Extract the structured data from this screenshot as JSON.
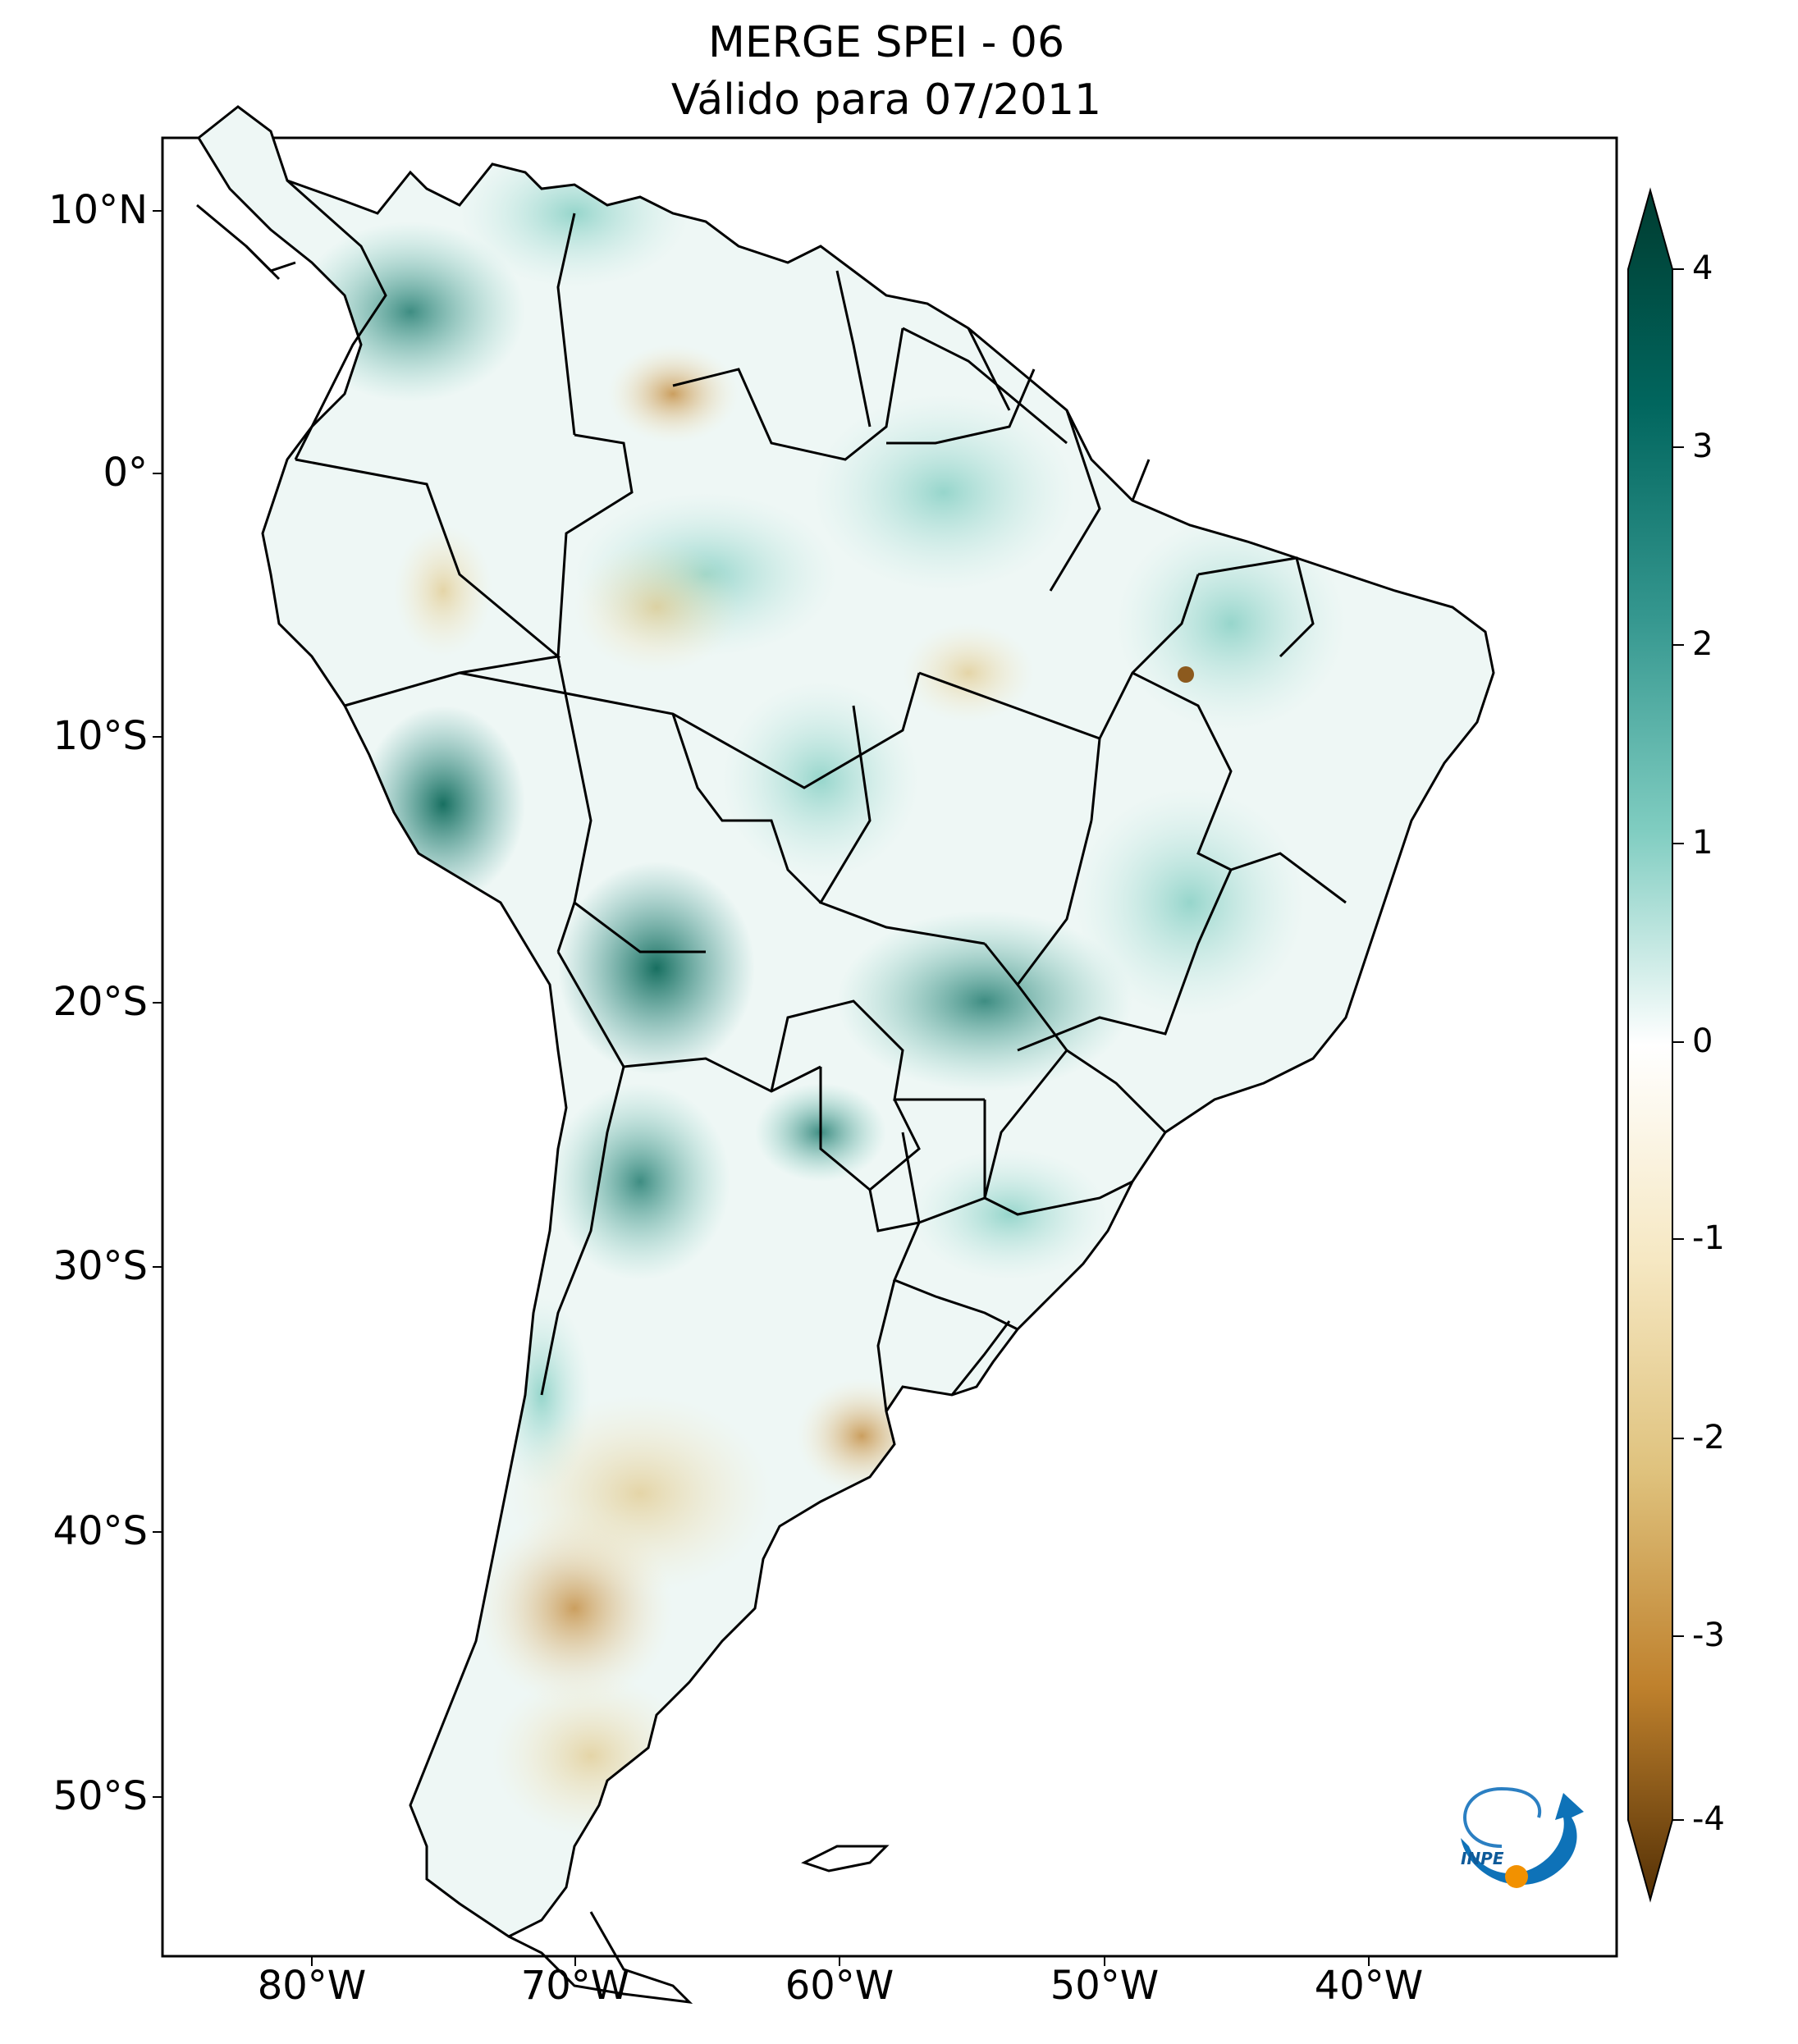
{
  "title": {
    "line1": "MERGE   SPEI - 06",
    "line2": "Válido para 07/2011"
  },
  "axes": {
    "lat_labels": [
      "10°N",
      "0°",
      "10°S",
      "20°S",
      "30°S",
      "40°S",
      "50°S"
    ],
    "lon_labels": [
      "80°W",
      "70°W",
      "60°W",
      "50°W",
      "40°W"
    ]
  },
  "colorbar": {
    "ticks": [
      "4",
      "3",
      "2",
      "1",
      "0",
      "-1",
      "-2",
      "-3",
      "-4"
    ],
    "range": [
      -4,
      4
    ],
    "colors": {
      "dry_max": "#543005",
      "dry_mid": "#bf812d",
      "dry_low": "#f6e8c3",
      "neutral": "#ffffff",
      "wet_low": "#c7eae5",
      "wet_mid": "#35978f",
      "wet_max": "#003c30"
    }
  },
  "logo": {
    "text": "INPE"
  }
}
